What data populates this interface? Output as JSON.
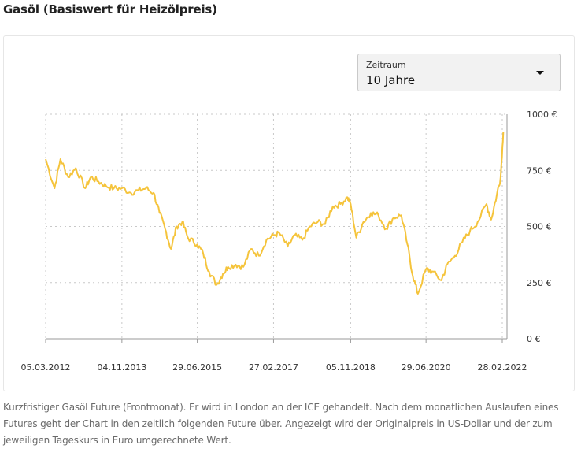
{
  "page": {
    "title": "Gasöl (Basiswert für Heizölpreis)",
    "caption": "Kurzfristiger Gasöl Future (Frontmonat). Er wird in London an der ICE gehandelt. Nach dem monatlichen Auslaufen eines Futures geht der Chart in den zeitlich folgenden Future über. Angezeigt wird der Originalpreis in US-Dollar und der zum jeweiligen Tageskurs in Euro umgerechnete Wert."
  },
  "range_select": {
    "label": "Zeitraum",
    "value": "10 Jahre"
  },
  "colors": {
    "line": "#f5c43c",
    "grid": "#c8c8c8",
    "axis": "#9a9a9a"
  },
  "chart_data": {
    "type": "line",
    "title": "",
    "xlabel": "",
    "ylabel": "",
    "ylim": [
      0,
      1000
    ],
    "grid": true,
    "y_ticks": [
      {
        "value": 0,
        "label": "0 €"
      },
      {
        "value": 250,
        "label": "250 €"
      },
      {
        "value": 500,
        "label": "500 €"
      },
      {
        "value": 750,
        "label": "750 €"
      },
      {
        "value": 1000,
        "label": "1000 €"
      }
    ],
    "x_ticks": [
      {
        "value": "2012-03-05",
        "label": "05.03.2012"
      },
      {
        "value": "2013-11-04",
        "label": "04.11.2013"
      },
      {
        "value": "2015-06-29",
        "label": "29.06.2015"
      },
      {
        "value": "2017-02-27",
        "label": "27.02.2017"
      },
      {
        "value": "2018-11-05",
        "label": "05.11.2018"
      },
      {
        "value": "2020-06-29",
        "label": "29.06.2020"
      },
      {
        "value": "2022-02-28",
        "label": "28.02.2022"
      }
    ],
    "series": [
      {
        "x": [
          "2012-03-05",
          "2012-05-15",
          "2012-07-01",
          "2012-09-01",
          "2012-11-01",
          "2013-01-15",
          "2013-03-01",
          "2013-05-01",
          "2013-07-01",
          "2013-09-01",
          "2013-11-04",
          "2014-01-15",
          "2014-03-15",
          "2014-05-15",
          "2014-07-15",
          "2014-09-01",
          "2014-10-15",
          "2014-12-01",
          "2015-01-15",
          "2015-03-01",
          "2015-04-15",
          "2015-06-29",
          "2015-08-15",
          "2015-10-01",
          "2015-12-01",
          "2016-01-20",
          "2016-03-01",
          "2016-05-01",
          "2016-07-01",
          "2016-09-01",
          "2016-11-01",
          "2017-01-01",
          "2017-02-27",
          "2017-04-15",
          "2017-06-20",
          "2017-08-15",
          "2017-10-15",
          "2017-12-15",
          "2018-02-15",
          "2018-04-15",
          "2018-06-15",
          "2018-08-15",
          "2018-10-10",
          "2018-11-05",
          "2018-12-20",
          "2019-02-15",
          "2019-04-15",
          "2019-06-15",
          "2019-08-15",
          "2019-10-15",
          "2019-12-15",
          "2020-02-01",
          "2020-03-15",
          "2020-04-25",
          "2020-06-29",
          "2020-08-15",
          "2020-10-30",
          "2020-12-15",
          "2021-02-15",
          "2021-04-15",
          "2021-06-15",
          "2021-08-15",
          "2021-10-25",
          "2021-12-01",
          "2022-01-15",
          "2022-02-15",
          "2022-03-08"
        ],
        "values": [
          800,
          670,
          800,
          720,
          760,
          670,
          720,
          700,
          680,
          670,
          670,
          650,
          660,
          670,
          650,
          560,
          490,
          400,
          500,
          520,
          450,
          420,
          380,
          300,
          240,
          290,
          320,
          330,
          320,
          400,
          370,
          440,
          460,
          470,
          410,
          460,
          440,
          500,
          520,
          510,
          590,
          600,
          630,
          600,
          450,
          520,
          560,
          550,
          490,
          540,
          550,
          420,
          280,
          200,
          310,
          300,
          260,
          330,
          370,
          430,
          480,
          520,
          600,
          530,
          640,
          720,
          920
        ]
      }
    ]
  }
}
